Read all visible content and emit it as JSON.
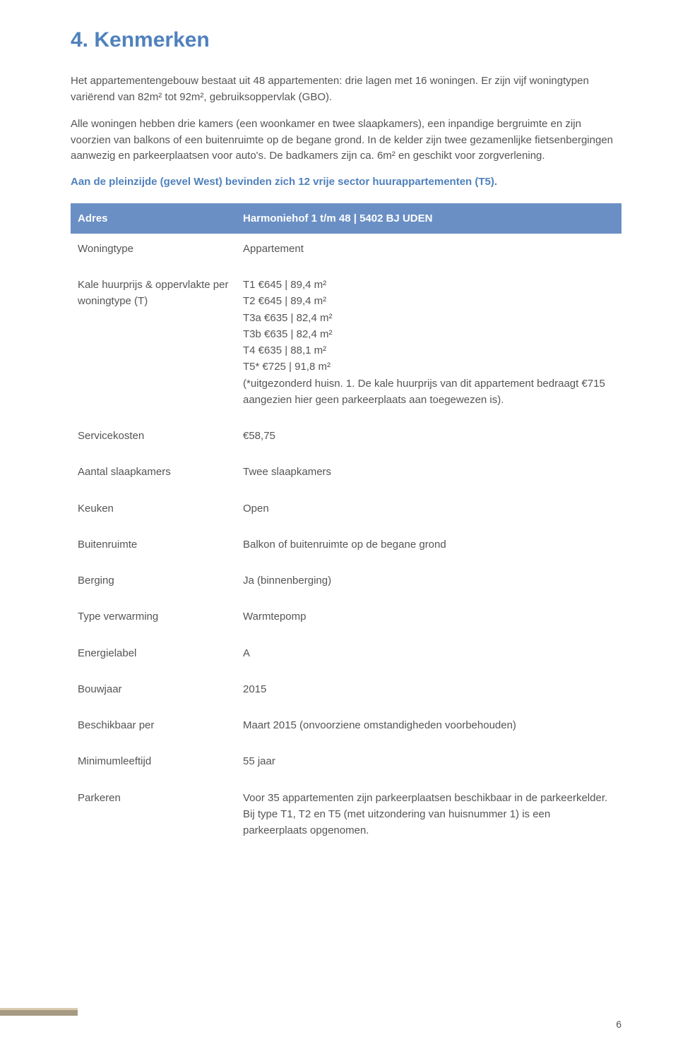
{
  "title": "4. Kenmerken",
  "paragraphs": {
    "p1": "Het appartementengebouw bestaat uit 48 appartementen: drie lagen met 16 woningen. Er zijn vijf woningtypen variërend van 82m² tot 92m², gebruiksoppervlak (GBO).",
    "p2": "Alle woningen hebben drie kamers (een woonkamer en twee slaapkamers), een inpandige bergruimte en zijn voorzien van balkons of een buitenruimte op de begane grond. In de kelder zijn twee gezamenlijke fietsenbergingen aanwezig en parkeerplaatsen voor auto's. De badkamers zijn ca. 6m² en geschikt voor zorgverlening.",
    "highlight": "Aan de pleinzijde (gevel West) bevinden zich 12 vrije sector huurappartementen (T5)."
  },
  "table": {
    "header": {
      "label": "Adres",
      "value": "Harmoniehof 1 t/m 48 | 5402 BJ UDEN"
    },
    "rows": [
      {
        "label": "Woningtype",
        "value": "Appartement"
      },
      {
        "label": "Kale huurprijs & oppervlakte per woningtype (T)",
        "value": "T1     €645   |   89,4 m²\nT2     €645   |   89,4 m²\nT3a   €635   |   82,4 m²\nT3b   €635   |   82,4 m²\nT4     €635   |   88,1 m²\nT5*   €725   |   91,8 m²\n(*uitgezonderd huisn. 1. De kale huurprijs van dit appartement bedraagt €715 aangezien hier geen parkeerplaats aan toegewezen is)."
      },
      {
        "label": "Servicekosten",
        "value": "€58,75"
      },
      {
        "label": "Aantal slaapkamers",
        "value": "Twee slaapkamers"
      },
      {
        "label": "Keuken",
        "value": "Open"
      },
      {
        "label": "Buitenruimte",
        "value": "Balkon of buitenruimte op de begane grond"
      },
      {
        "label": "Berging",
        "value": "Ja (binnenberging)"
      },
      {
        "label": "Type verwarming",
        "value": "Warmtepomp"
      },
      {
        "label": "Energielabel",
        "value": "A"
      },
      {
        "label": "Bouwjaar",
        "value": "2015"
      },
      {
        "label": "Beschikbaar per",
        "value": "Maart 2015 (onvoorziene omstandigheden voorbehouden)"
      },
      {
        "label": "Minimumleeftijd",
        "value": "55 jaar"
      },
      {
        "label": "Parkeren",
        "value": "Voor 35 appartementen zijn parkeerplaatsen beschikbaar in de parkeerkelder. Bij type T1, T2 en T5 (met uitzondering van huisnummer 1) is een parkeerplaats opgenomen."
      }
    ]
  },
  "page_number": "6",
  "colors": {
    "heading": "#4f81bd",
    "table_header_bg": "#6a8fc5",
    "body_text": "#555555"
  }
}
